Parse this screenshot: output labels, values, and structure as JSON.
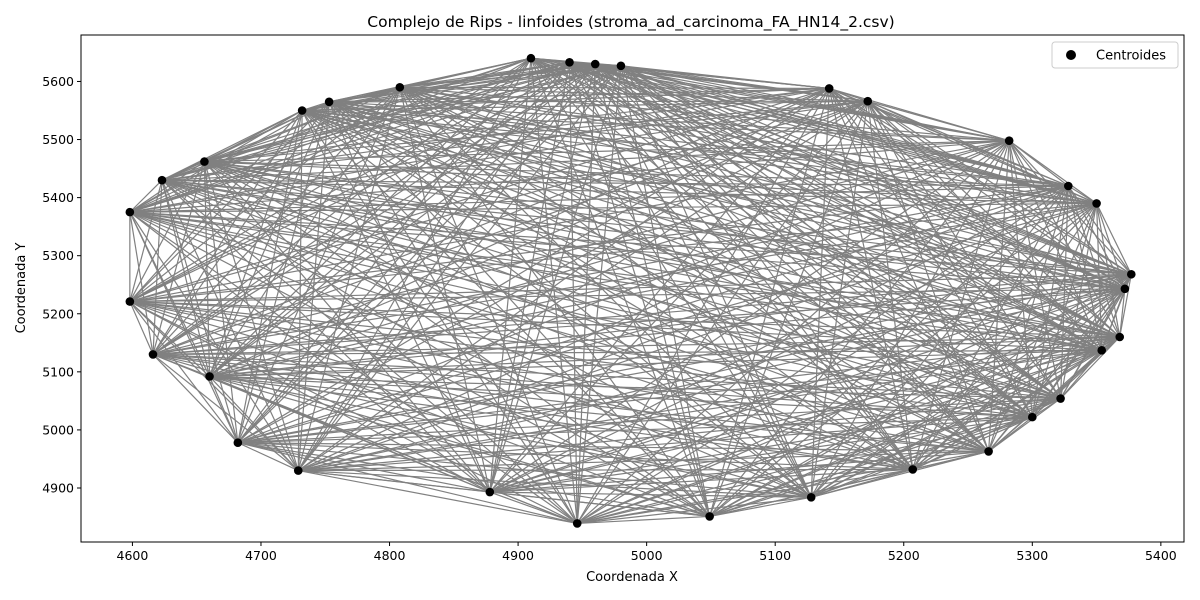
{
  "chart_data": {
    "type": "scatter",
    "title": "Complejo de Rips - linfoides (stroma_ad_carcinoma_FA_HN14_2.csv)",
    "xlabel": "Coordenada X",
    "ylabel": "Coordenada Y",
    "xlim": [
      4560,
      5418
    ],
    "ylim": [
      4807,
      5680
    ],
    "xticks": [
      4600,
      4700,
      4800,
      4900,
      5000,
      5100,
      5200,
      5300,
      5400
    ],
    "yticks": [
      4900,
      5000,
      5100,
      5200,
      5300,
      5400,
      5500,
      5600
    ],
    "grid": false,
    "legend": {
      "position": "upper-right",
      "entries": [
        "Centroides"
      ]
    },
    "colors": {
      "points": "#000000",
      "edges": "#808080"
    },
    "series": [
      {
        "name": "Centroides",
        "points": [
          [
            4910,
            5640
          ],
          [
            4940,
            5633
          ],
          [
            4960,
            5630
          ],
          [
            4980,
            5627
          ],
          [
            5142,
            5588
          ],
          [
            5172,
            5566
          ],
          [
            5282,
            5498
          ],
          [
            5328,
            5420
          ],
          [
            5350,
            5390
          ],
          [
            5377,
            5268
          ],
          [
            5372,
            5243
          ],
          [
            5368,
            5160
          ],
          [
            5354,
            5137
          ],
          [
            5322,
            5054
          ],
          [
            5300,
            5022
          ],
          [
            5266,
            4963
          ],
          [
            5207,
            4932
          ],
          [
            5128,
            4884
          ],
          [
            5049,
            4851
          ],
          [
            4946,
            4839
          ],
          [
            4878,
            4893
          ],
          [
            4729,
            4930
          ],
          [
            4682,
            4978
          ],
          [
            4616,
            5130
          ],
          [
            4598,
            5221
          ],
          [
            4598,
            5375
          ],
          [
            4623,
            5430
          ],
          [
            4656,
            5462
          ],
          [
            4732,
            5550
          ],
          [
            4753,
            5565
          ],
          [
            4808,
            5590
          ],
          [
            4660,
            5092
          ]
        ]
      }
    ]
  }
}
